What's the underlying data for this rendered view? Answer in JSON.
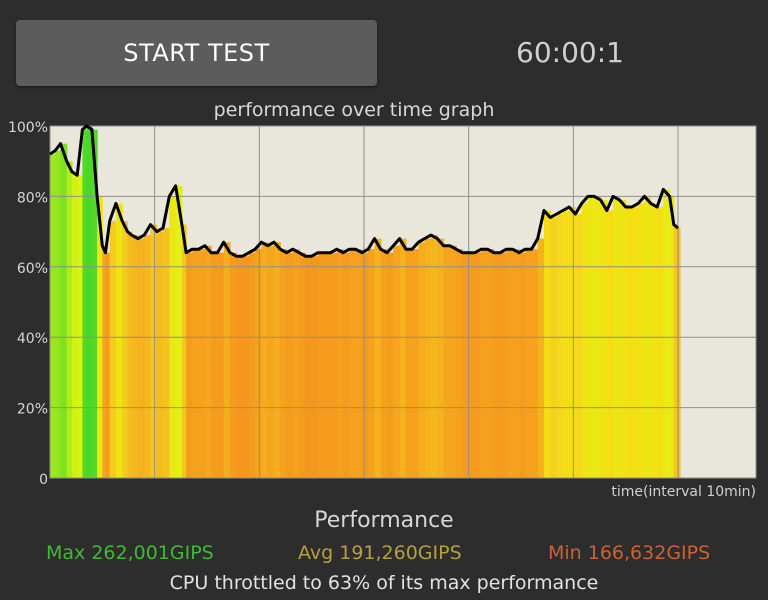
{
  "controls": {
    "start_label": "START TEST",
    "timer": "60:00:1"
  },
  "graph": {
    "title": "performance over time graph",
    "x_caption": "time(interval 10min)"
  },
  "summary": {
    "heading": "Performance",
    "max": "Max 262,001GIPS",
    "avg": "Avg 191,260GIPS",
    "min": "Min 166,632GIPS",
    "throttle": "CPU throttled to 63% of its max performance"
  },
  "colors": {
    "plot_background": "#e9e7dc",
    "line": "#000000",
    "max_text": "#3fba33",
    "avg_text": "#b3a03e",
    "min_text": "#cc6232"
  },
  "chart_data": {
    "type": "area",
    "title": "performance over time graph",
    "xlabel": "time(interval 10min)",
    "ylabel": "",
    "ylim": [
      0,
      100
    ],
    "y_ticks": [
      "0",
      "20%",
      "40%",
      "60%",
      "80%",
      "100%"
    ],
    "x_interval_minutes": 10,
    "xlim_minutes": [
      0,
      60
    ],
    "grid": true,
    "series": [
      {
        "x_minutes": [
          0,
          0.5,
          1,
          1.6,
          2.1,
          2.6,
          3.1,
          3.5,
          4,
          4.5,
          5,
          5.3,
          5.7,
          6.3,
          6.9,
          7.4,
          7.8,
          8.4,
          9,
          9.6,
          10.2,
          10.8,
          11.4,
          12,
          12.6,
          13,
          13.6,
          14.2,
          14.8,
          15.4,
          16,
          16.6,
          17.2,
          17.8,
          18.4,
          19,
          19.6,
          20.2,
          20.8,
          21.4,
          22,
          22.6,
          23.2,
          23.8,
          24.4,
          25,
          25.6,
          26.2,
          26.8,
          27.4,
          28,
          28.6,
          29.2,
          29.8,
          30.4,
          31,
          31.6,
          32.2,
          32.8,
          33.4,
          34,
          34.6,
          35.2,
          35.8,
          36.4,
          37,
          37.6,
          38.2,
          38.8,
          39.4,
          40,
          40.6,
          41.2,
          41.8,
          42.4,
          43,
          43.6,
          44.2,
          44.8,
          45.4,
          46,
          46.6,
          47.2,
          47.8,
          48.4,
          49,
          49.6,
          50.2,
          50.8,
          51.4,
          52,
          52.6,
          53.2,
          53.8,
          54.4,
          55,
          55.6,
          56.2,
          56.8,
          57.4,
          58,
          58.6,
          59.2,
          59.6,
          60
        ],
        "values": [
          92,
          93,
          95,
          90,
          87,
          86,
          99,
          100,
          99,
          80,
          66,
          64,
          73,
          78,
          73,
          70,
          69,
          68,
          69,
          72,
          70,
          71,
          80,
          83,
          72,
          64,
          65,
          65,
          66,
          64,
          64,
          67,
          64,
          63,
          63,
          64,
          65,
          67,
          66,
          67,
          65,
          64,
          65,
          64,
          63,
          63,
          64,
          64,
          64,
          65,
          64,
          65,
          65,
          64,
          65,
          68,
          65,
          64,
          66,
          68,
          65,
          65,
          67,
          68,
          69,
          68,
          66,
          66,
          65,
          64,
          64,
          64,
          65,
          65,
          64,
          64,
          65,
          65,
          64,
          65,
          65,
          68,
          76,
          74,
          75,
          76,
          77,
          75,
          78,
          80,
          80,
          79,
          76,
          80,
          79,
          77,
          77,
          78,
          80,
          78,
          77,
          82,
          80,
          72,
          71
        ]
      }
    ]
  }
}
